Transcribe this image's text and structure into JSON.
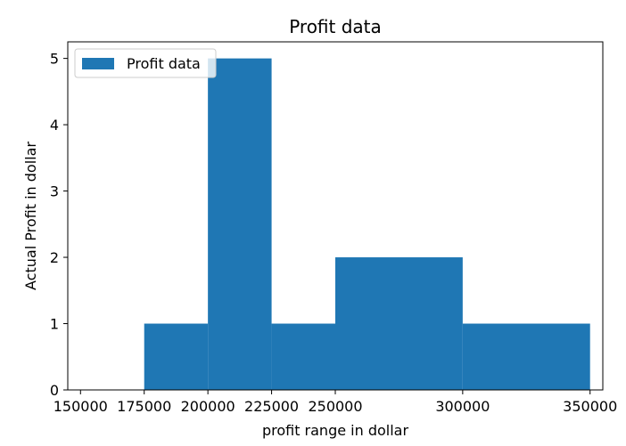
{
  "chart_data": {
    "type": "bar",
    "title": "Profit data",
    "xlabel": "profit range in dollar",
    "ylabel": "Actual Profit in dollar",
    "xlim": [
      145000,
      355000
    ],
    "ylim": [
      0,
      5.25
    ],
    "x_ticks": [
      150000,
      175000,
      200000,
      225000,
      250000,
      300000,
      350000
    ],
    "x_tick_labels": [
      "150000",
      "175000",
      "200000",
      "225000",
      "250000",
      "300000",
      "350000"
    ],
    "y_ticks": [
      0,
      1,
      2,
      3,
      4,
      5
    ],
    "y_tick_labels": [
      "0",
      "1",
      "2",
      "3",
      "4",
      "5"
    ],
    "bins": [
      {
        "start": 175000,
        "end": 200000,
        "value": 1
      },
      {
        "start": 200000,
        "end": 225000,
        "value": 5
      },
      {
        "start": 225000,
        "end": 250000,
        "value": 1
      },
      {
        "start": 250000,
        "end": 300000,
        "value": 2
      },
      {
        "start": 300000,
        "end": 350000,
        "value": 1
      }
    ],
    "series": [
      {
        "name": "Profit data",
        "color": "#1f77b4"
      }
    ],
    "legend_position": "top-left",
    "grid": false
  }
}
